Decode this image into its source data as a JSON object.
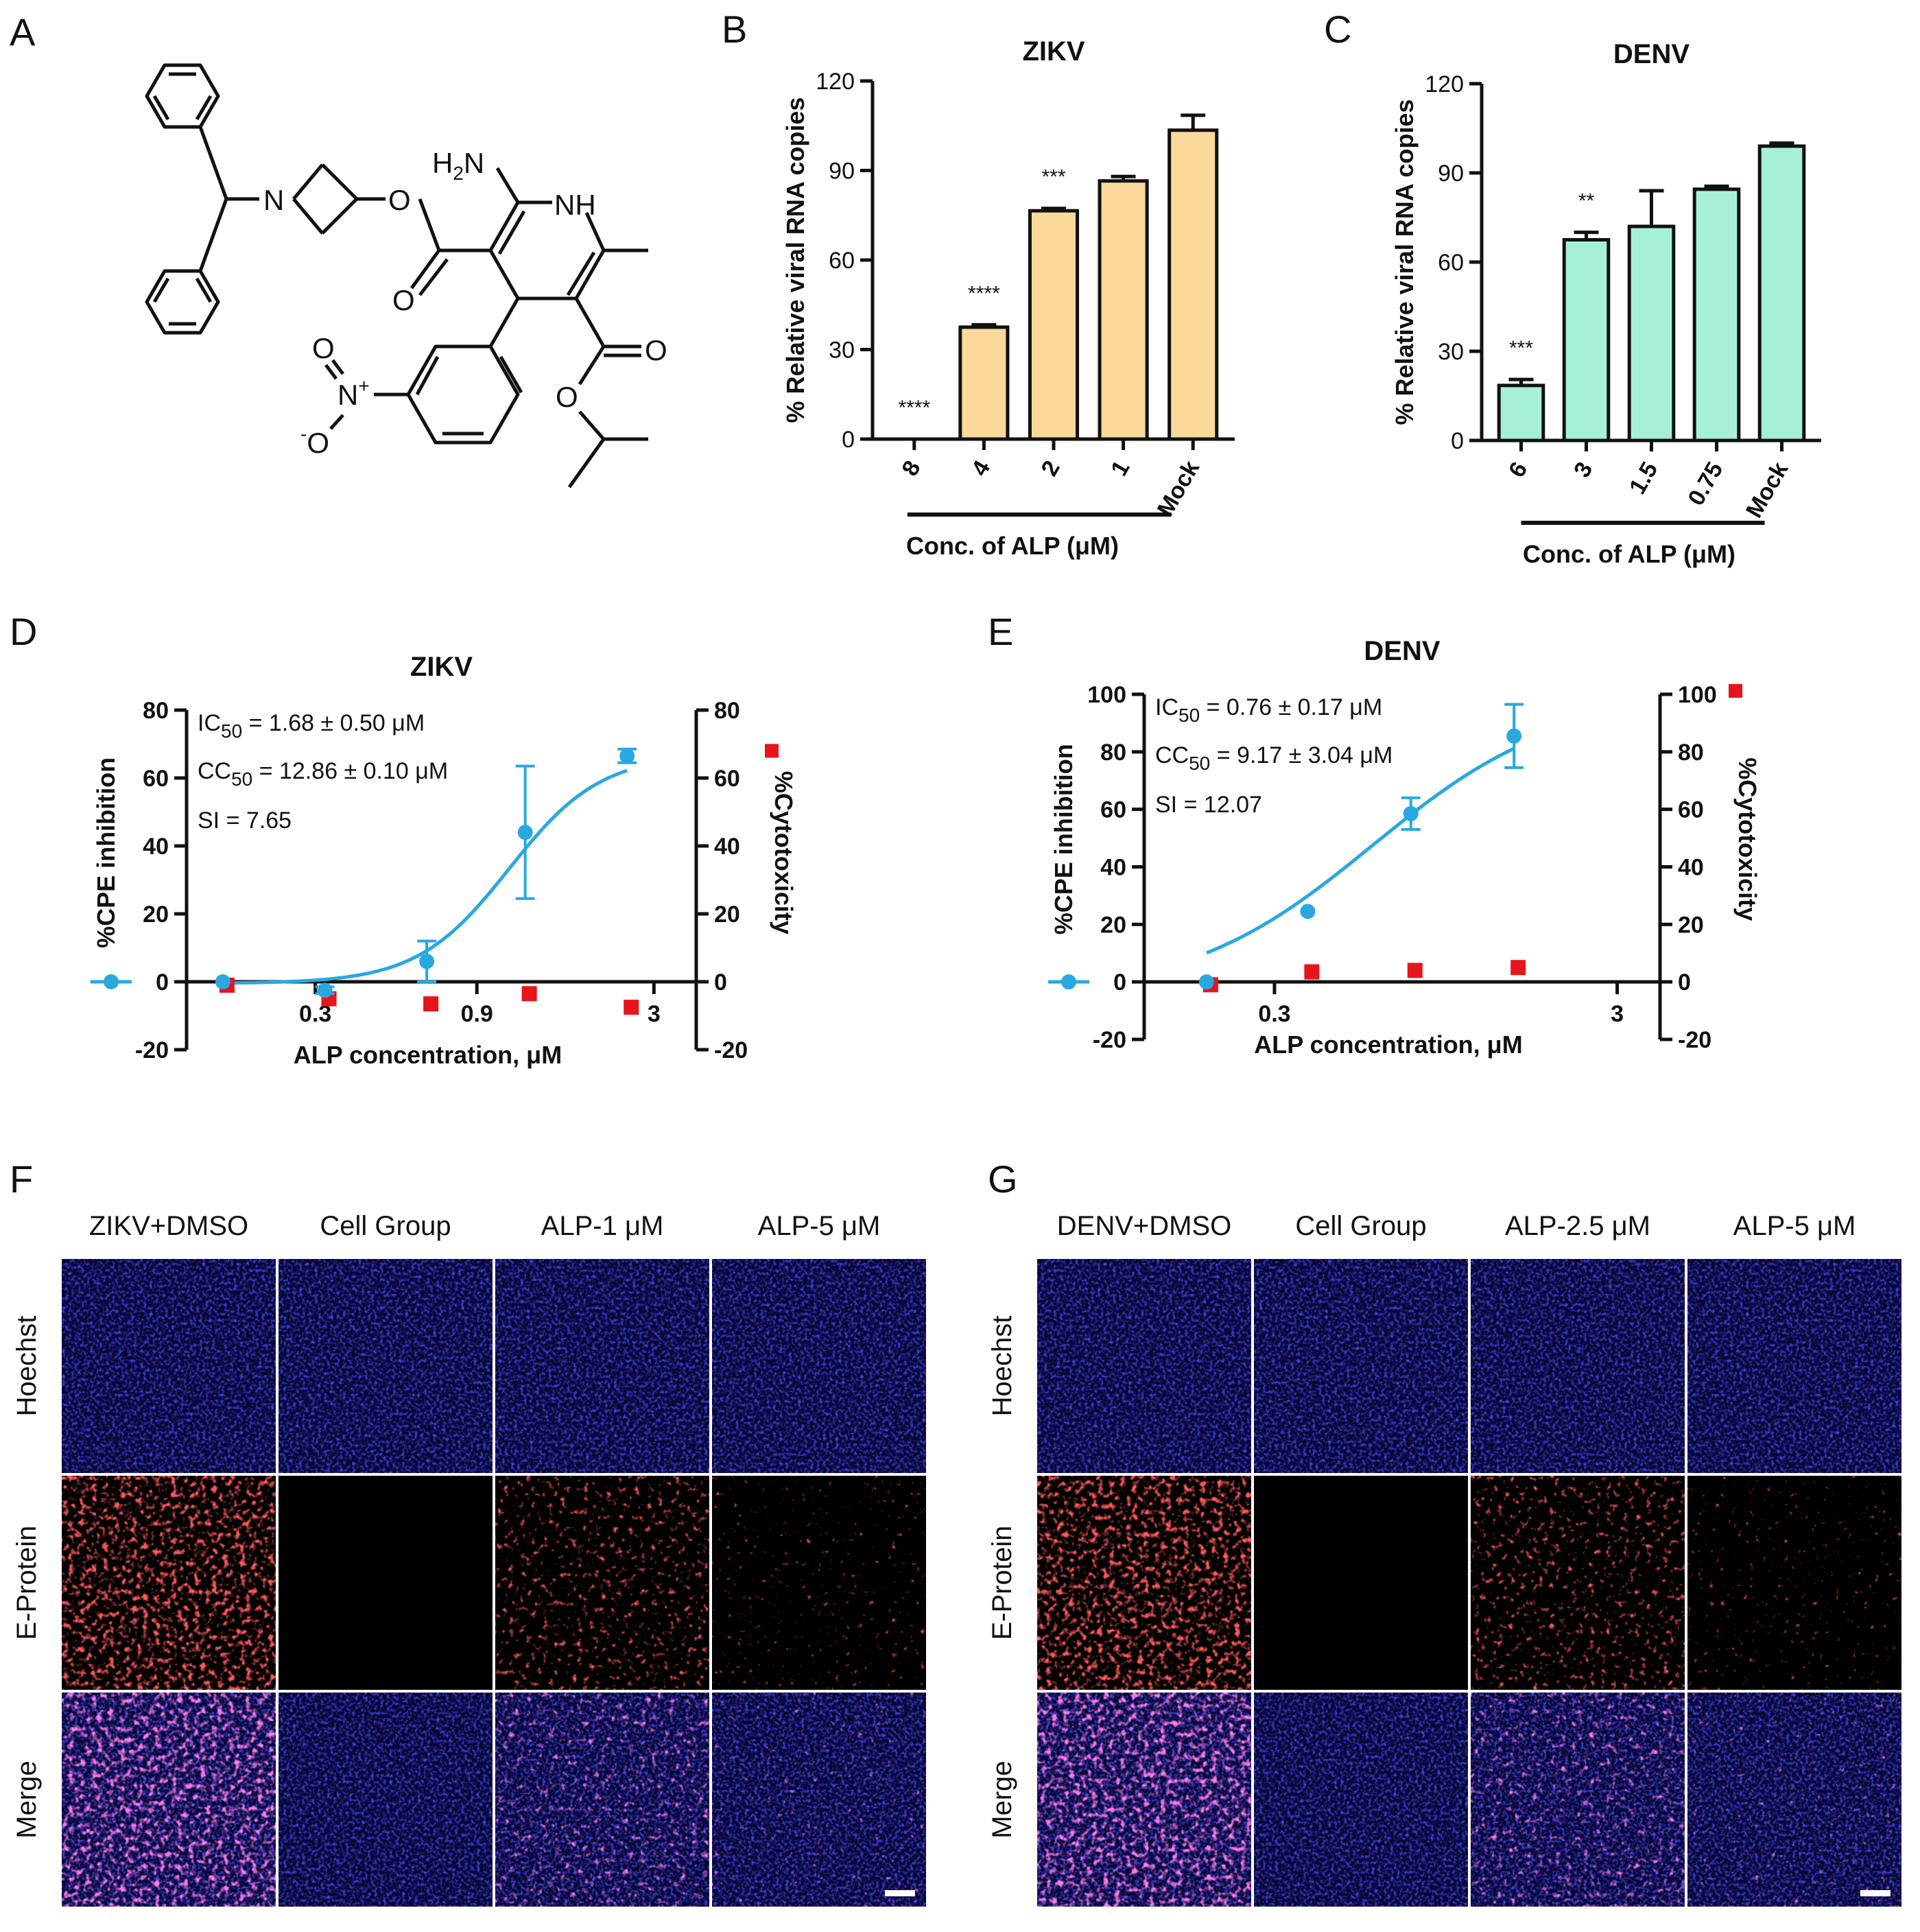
{
  "panels": {
    "A": {
      "letter": "A"
    },
    "B": {
      "letter": "B"
    },
    "C": {
      "letter": "C"
    },
    "D": {
      "letter": "D"
    },
    "E": {
      "letter": "E"
    },
    "F": {
      "letter": "F"
    },
    "G": {
      "letter": "G"
    }
  },
  "structure": {
    "labels": {
      "h2n": "H",
      "h2n_sub": "2",
      "h2n_n": "N",
      "nh": "NH",
      "n_ring": "N",
      "o1": "O",
      "o2": "O",
      "o3": "O",
      "o4": "O",
      "o5": "O",
      "nitro_n": "N",
      "nitro_plus": "+",
      "nitro_ominus": "O",
      "nitro_minus": "-"
    }
  },
  "chart_data": [
    {
      "id": "B",
      "type": "bar",
      "title": "ZIKV",
      "categories": [
        "8",
        "4",
        "2",
        "1",
        "Mock"
      ],
      "values": [
        0,
        37.5,
        76.5,
        86.5,
        103.5
      ],
      "errors": [
        0,
        0.8,
        0.8,
        1.5,
        5
      ],
      "significance": [
        "****",
        "****",
        "***",
        "",
        ""
      ],
      "ylabel": "% Relative viral RNA copies",
      "xlabel": "Conc. of ALP (μM)",
      "ylim": [
        0,
        120
      ],
      "yticks": [
        0,
        30,
        60,
        90,
        120
      ],
      "bar_color": "#fbd99b"
    },
    {
      "id": "C",
      "type": "bar",
      "title": "DENV",
      "categories": [
        "6",
        "3",
        "1.5",
        "0.75",
        "Mock"
      ],
      "values": [
        18.5,
        67.5,
        72,
        84.5,
        99
      ],
      "errors": [
        2,
        2.5,
        12,
        1,
        1
      ],
      "significance": [
        "***",
        "**",
        "",
        "",
        ""
      ],
      "ylabel": "% Relative viral RNA copies",
      "xlabel": "Conc. of ALP (μM)",
      "ylim": [
        0,
        120
      ],
      "yticks": [
        0,
        30,
        60,
        90,
        120
      ],
      "bar_color": "#a6f0d9"
    },
    {
      "id": "D",
      "type": "scatter",
      "title": "ZIKV",
      "xlabel": "ALP concentration, μM",
      "ylabel_left": "%CPE inhibition",
      "ylabel_right": "%Cytotoxicity",
      "xlim": [
        0.125,
        4.0
      ],
      "xscale": "log",
      "xticks": [
        "0.3",
        "0.9",
        "3"
      ],
      "ylim": [
        -20,
        80
      ],
      "yticks": [
        -20,
        0,
        20,
        40,
        60,
        80
      ],
      "cpe": {
        "x": [
          0.16,
          0.32,
          0.64,
          1.25,
          2.5
        ],
        "y": [
          0,
          -2.5,
          6,
          44,
          66.5
        ],
        "err": [
          0,
          1,
          6,
          19.5,
          2
        ]
      },
      "cytotoxicity": {
        "x": [
          0.16,
          0.32,
          0.64,
          1.25,
          2.5
        ],
        "y": [
          -1,
          -5,
          -6.5,
          -3.5,
          -7.5
        ]
      },
      "fit": {
        "bottom": -0.5,
        "top": 67,
        "ic50": 1.12,
        "hill": 3.2
      },
      "annotations": {
        "ic50_pre": "IC",
        "ic50_sub": "50",
        "ic50_val": " = 1.68 ± 0.50 μM",
        "cc50_pre": "CC",
        "cc50_sub": "50",
        "cc50_val": " = 12.86 ± 0.10 μM",
        "si": "SI = 7.65"
      },
      "legend": {
        "cpe_marker": "circle",
        "cyto_marker": "square"
      },
      "colors": {
        "cpe": "#29a8e0",
        "cyto": "#e8141c"
      }
    },
    {
      "id": "E",
      "type": "scatter",
      "title": "DENV",
      "xlabel": "ALP concentration, μM",
      "ylabel_left": "%CPE inhibition",
      "ylabel_right": "%Cytotoxicity",
      "xlim": [
        0.125,
        4.0
      ],
      "xscale": "log",
      "xticks": [
        "0.3",
        "3"
      ],
      "ylim": [
        -20,
        100
      ],
      "yticks": [
        -20,
        0,
        20,
        40,
        60,
        80,
        100
      ],
      "cpe": {
        "x": [
          0.19,
          0.375,
          0.75,
          1.5
        ],
        "y": [
          0,
          24.5,
          58.5,
          85.5
        ],
        "err": [
          0,
          0,
          5.5,
          11
        ]
      },
      "cytotoxicity": {
        "x": [
          0.19,
          0.375,
          0.75,
          1.5
        ],
        "y": [
          -1,
          3.5,
          4,
          5
        ]
      },
      "fit": {
        "bottom": -5,
        "top": 100,
        "ic50": 0.58,
        "hill": 1.6
      },
      "annotations": {
        "ic50_pre": "IC",
        "ic50_sub": "50",
        "ic50_val": " = 0.76 ± 0.17 μM",
        "cc50_pre": "CC",
        "cc50_sub": "50",
        "cc50_val": " = 9.17 ± 3.04 μM",
        "si": "SI = 12.07"
      },
      "legend": {
        "cpe_marker": "circle",
        "cyto_marker": "square"
      },
      "colors": {
        "cpe": "#29a8e0",
        "cyto": "#e8141c"
      }
    }
  ],
  "micrographs": {
    "F": {
      "columns": [
        "ZIKV+DMSO",
        "Cell Group",
        "ALP-1 μM",
        "ALP-5 μM"
      ],
      "rows": [
        "Hoechst",
        "E-Protein",
        "Merge"
      ],
      "infection_level": [
        1.0,
        0.0,
        0.75,
        0.35
      ]
    },
    "G": {
      "columns": [
        "DENV+DMSO",
        "Cell Group",
        "ALP-2.5 μM",
        "ALP-5 μM"
      ],
      "rows": [
        "Hoechst",
        "E-Protein",
        "Merge"
      ],
      "infection_level": [
        1.0,
        0.0,
        0.7,
        0.35
      ]
    },
    "colors": {
      "nuclei": "#1a1ae6",
      "protein": "#ff1a1a",
      "merge": "#ff33cc"
    }
  }
}
